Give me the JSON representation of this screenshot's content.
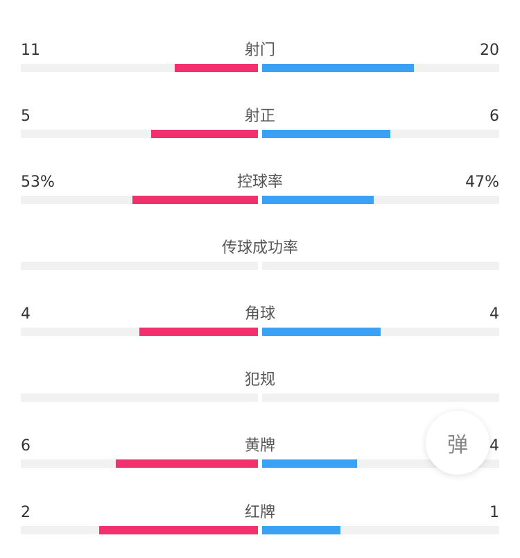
{
  "colors": {
    "home": "#f2306e",
    "away": "#3ba1f4",
    "track": "#f1f1f1"
  },
  "stats": [
    {
      "label": "射门",
      "home": "11",
      "away": "20",
      "home_fill": 0.35,
      "away_fill": 0.64
    },
    {
      "label": "射正",
      "home": "5",
      "away": "6",
      "home_fill": 0.45,
      "away_fill": 0.54
    },
    {
      "label": "控球率",
      "home": "53%",
      "away": "47%",
      "home_fill": 0.53,
      "away_fill": 0.47
    },
    {
      "label": "传球成功率",
      "home": "",
      "away": "",
      "home_fill": 0,
      "away_fill": 0
    },
    {
      "label": "角球",
      "home": "4",
      "away": "4",
      "home_fill": 0.5,
      "away_fill": 0.5
    },
    {
      "label": "犯规",
      "home": "",
      "away": "",
      "home_fill": 0,
      "away_fill": 0
    },
    {
      "label": "黄牌",
      "home": "6",
      "away": "4",
      "home_fill": 0.6,
      "away_fill": 0.4
    },
    {
      "label": "红牌",
      "home": "2",
      "away": "1",
      "home_fill": 0.67,
      "away_fill": 0.33
    }
  ],
  "float_button": {
    "label": "弹"
  }
}
